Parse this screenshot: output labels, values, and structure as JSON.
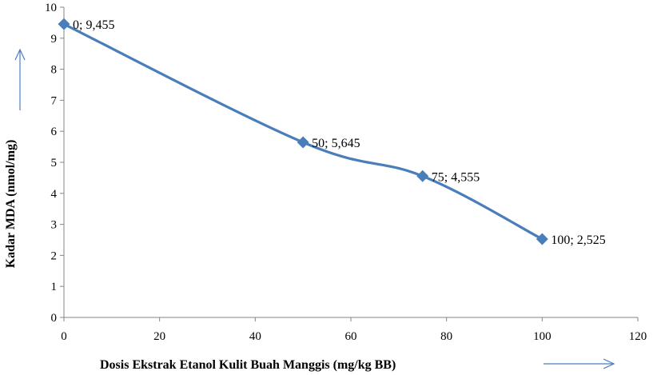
{
  "chart_data": {
    "type": "line",
    "xlabel": "Dosis  Ekstrak Etanol Kulit  Buah Manggis (mg/kg BB)",
    "ylabel": "Kadar MDA (nmol/mg)",
    "xlim": [
      0,
      120
    ],
    "ylim": [
      0,
      10
    ],
    "x_ticks": [
      "0",
      "20",
      "40",
      "60",
      "80",
      "100",
      "120"
    ],
    "y_ticks": [
      "0",
      "1",
      "2",
      "3",
      "4",
      "5",
      "6",
      "7",
      "8",
      "9",
      "10"
    ],
    "grid": false,
    "legend": "none",
    "series": [
      {
        "color": "#4a7ebb",
        "marker": "diamond",
        "points": [
          {
            "x": 0,
            "y": 9.455,
            "label": "0; 9,455"
          },
          {
            "x": 50,
            "y": 5.645,
            "label": "50; 5,645"
          },
          {
            "x": 75,
            "y": 4.555,
            "label": "75; 4,555"
          },
          {
            "x": 100,
            "y": 2.525,
            "label": "100; 2,525"
          }
        ]
      }
    ],
    "arrow_color": "#4a7ebb"
  }
}
